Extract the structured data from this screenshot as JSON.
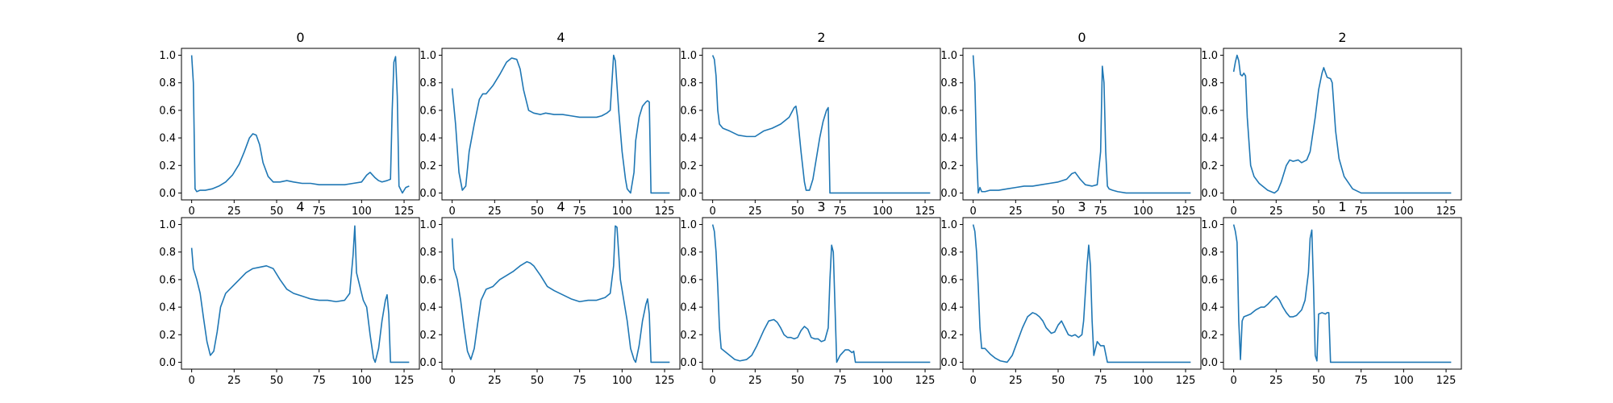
{
  "chart_data": [
    {
      "type": "line",
      "title": "0",
      "xlim": [
        -6,
        134
      ],
      "ylim": [
        -0.05,
        1.05
      ],
      "xticks": [
        0,
        25,
        50,
        75,
        100,
        125
      ],
      "yticks": [
        0.0,
        0.2,
        0.4,
        0.6,
        0.8,
        1.0
      ],
      "series": [
        {
          "color": "#1f77b4",
          "x": [
            0,
            1,
            2,
            3,
            5,
            8,
            12,
            16,
            20,
            24,
            28,
            31,
            34,
            36,
            38,
            40,
            42,
            45,
            48,
            52,
            56,
            60,
            65,
            70,
            75,
            80,
            85,
            90,
            95,
            100,
            103,
            105,
            108,
            110,
            112,
            115,
            117,
            118,
            119,
            120,
            121,
            122,
            124,
            126,
            128
          ],
          "y": [
            1.0,
            0.8,
            0.03,
            0.01,
            0.02,
            0.02,
            0.03,
            0.05,
            0.08,
            0.13,
            0.21,
            0.3,
            0.4,
            0.43,
            0.42,
            0.35,
            0.22,
            0.12,
            0.08,
            0.08,
            0.09,
            0.08,
            0.07,
            0.07,
            0.06,
            0.06,
            0.06,
            0.06,
            0.07,
            0.08,
            0.13,
            0.15,
            0.11,
            0.09,
            0.08,
            0.09,
            0.1,
            0.6,
            0.95,
            0.99,
            0.7,
            0.05,
            0.0,
            0.04,
            0.05
          ]
        }
      ]
    },
    {
      "type": "line",
      "title": "4",
      "xlim": [
        -6,
        134
      ],
      "ylim": [
        -0.05,
        1.05
      ],
      "xticks": [
        0,
        25,
        50,
        75,
        100,
        125
      ],
      "yticks": [
        0.0,
        0.2,
        0.4,
        0.6,
        0.8,
        1.0
      ],
      "series": [
        {
          "color": "#1f77b4",
          "x": [
            0,
            2,
            4,
            6,
            8,
            10,
            13,
            16,
            18,
            20,
            24,
            28,
            32,
            35,
            38,
            40,
            42,
            45,
            48,
            52,
            55,
            60,
            65,
            70,
            75,
            80,
            85,
            88,
            91,
            93,
            94,
            95,
            96,
            98,
            100,
            102,
            103,
            105,
            107,
            108,
            110,
            112,
            114,
            115,
            116,
            117,
            120,
            128
          ],
          "y": [
            0.76,
            0.5,
            0.15,
            0.02,
            0.05,
            0.3,
            0.5,
            0.68,
            0.72,
            0.72,
            0.78,
            0.86,
            0.95,
            0.98,
            0.97,
            0.9,
            0.75,
            0.6,
            0.58,
            0.57,
            0.58,
            0.57,
            0.57,
            0.56,
            0.55,
            0.55,
            0.55,
            0.56,
            0.58,
            0.6,
            0.8,
            1.0,
            0.96,
            0.6,
            0.3,
            0.1,
            0.03,
            0.0,
            0.15,
            0.38,
            0.55,
            0.63,
            0.66,
            0.67,
            0.66,
            0.0,
            0.0,
            0.0
          ]
        }
      ]
    },
    {
      "type": "line",
      "title": "2",
      "xlim": [
        -6,
        134
      ],
      "ylim": [
        -0.05,
        1.05
      ],
      "xticks": [
        0,
        25,
        50,
        75,
        100,
        125
      ],
      "yticks": [
        0.0,
        0.2,
        0.4,
        0.6,
        0.8,
        1.0
      ],
      "series": [
        {
          "color": "#1f77b4",
          "x": [
            0,
            1,
            2,
            3,
            4,
            6,
            10,
            15,
            20,
            25,
            30,
            35,
            40,
            45,
            48,
            49,
            50,
            52,
            54,
            55,
            57,
            59,
            61,
            63,
            65,
            67,
            68,
            69,
            70,
            75,
            80,
            90,
            100,
            110,
            120,
            128
          ],
          "y": [
            1.0,
            0.97,
            0.85,
            0.6,
            0.5,
            0.47,
            0.45,
            0.42,
            0.41,
            0.41,
            0.45,
            0.47,
            0.5,
            0.55,
            0.62,
            0.63,
            0.55,
            0.3,
            0.08,
            0.02,
            0.02,
            0.1,
            0.25,
            0.4,
            0.52,
            0.6,
            0.62,
            0.0,
            0.0,
            0.0,
            0.0,
            0.0,
            0.0,
            0.0,
            0.0,
            0.0
          ]
        }
      ]
    },
    {
      "type": "line",
      "title": "0",
      "xlim": [
        -6,
        134
      ],
      "ylim": [
        -0.05,
        1.05
      ],
      "xticks": [
        0,
        25,
        50,
        75,
        100,
        125
      ],
      "yticks": [
        0.0,
        0.2,
        0.4,
        0.6,
        0.8,
        1.0
      ],
      "series": [
        {
          "color": "#1f77b4",
          "x": [
            0,
            1,
            2,
            3,
            4,
            5,
            7,
            10,
            15,
            20,
            25,
            30,
            35,
            40,
            45,
            50,
            55,
            58,
            60,
            63,
            66,
            70,
            73,
            75,
            76,
            77,
            78,
            79,
            80,
            82,
            85,
            90,
            100,
            110,
            120,
            128
          ],
          "y": [
            1.0,
            0.8,
            0.3,
            0.0,
            0.04,
            0.01,
            0.01,
            0.02,
            0.02,
            0.03,
            0.04,
            0.05,
            0.05,
            0.06,
            0.07,
            0.08,
            0.1,
            0.14,
            0.15,
            0.1,
            0.06,
            0.05,
            0.06,
            0.3,
            0.92,
            0.8,
            0.3,
            0.05,
            0.03,
            0.02,
            0.01,
            0.0,
            0.0,
            0.0,
            0.0,
            0.0
          ]
        }
      ]
    },
    {
      "type": "line",
      "title": "2",
      "xlim": [
        -6,
        134
      ],
      "ylim": [
        -0.05,
        1.05
      ],
      "xticks": [
        0,
        25,
        50,
        75,
        100,
        125
      ],
      "yticks": [
        0.0,
        0.2,
        0.4,
        0.6,
        0.8,
        1.0
      ],
      "series": [
        {
          "color": "#1f77b4",
          "x": [
            0,
            1,
            2,
            3,
            4,
            5,
            6,
            7,
            8,
            10,
            12,
            15,
            20,
            24,
            26,
            28,
            31,
            33,
            35,
            38,
            40,
            43,
            45,
            48,
            50,
            52,
            53,
            55,
            57,
            58,
            60,
            62,
            65,
            70,
            75,
            80,
            90,
            100,
            110,
            120,
            128
          ],
          "y": [
            0.88,
            0.95,
            1.0,
            0.96,
            0.86,
            0.85,
            0.87,
            0.85,
            0.55,
            0.2,
            0.12,
            0.07,
            0.02,
            0.0,
            0.02,
            0.08,
            0.2,
            0.24,
            0.23,
            0.24,
            0.22,
            0.24,
            0.3,
            0.55,
            0.75,
            0.87,
            0.91,
            0.84,
            0.83,
            0.8,
            0.45,
            0.25,
            0.12,
            0.03,
            0.0,
            0.0,
            0.0,
            0.0,
            0.0,
            0.0,
            0.0
          ]
        }
      ]
    },
    {
      "type": "line",
      "title": "4",
      "xlim": [
        -6,
        134
      ],
      "ylim": [
        -0.05,
        1.05
      ],
      "xticks": [
        0,
        25,
        50,
        75,
        100,
        125
      ],
      "yticks": [
        0.0,
        0.2,
        0.4,
        0.6,
        0.8,
        1.0
      ],
      "series": [
        {
          "color": "#1f77b4",
          "x": [
            0,
            1,
            3,
            5,
            7,
            9,
            11,
            13,
            15,
            17,
            20,
            24,
            28,
            32,
            36,
            40,
            44,
            48,
            52,
            56,
            60,
            65,
            70,
            75,
            80,
            85,
            90,
            93,
            95,
            96,
            97,
            99,
            101,
            103,
            105,
            107,
            108,
            110,
            112,
            114,
            115,
            116,
            117,
            120,
            128
          ],
          "y": [
            0.83,
            0.68,
            0.6,
            0.5,
            0.32,
            0.15,
            0.05,
            0.08,
            0.22,
            0.4,
            0.5,
            0.55,
            0.6,
            0.65,
            0.68,
            0.69,
            0.7,
            0.68,
            0.6,
            0.53,
            0.5,
            0.48,
            0.46,
            0.45,
            0.45,
            0.44,
            0.45,
            0.5,
            0.78,
            0.99,
            0.65,
            0.55,
            0.45,
            0.4,
            0.2,
            0.03,
            0.0,
            0.1,
            0.3,
            0.45,
            0.49,
            0.35,
            0.0,
            0.0,
            0.0
          ]
        }
      ]
    },
    {
      "type": "line",
      "title": "4",
      "xlim": [
        -6,
        134
      ],
      "ylim": [
        -0.05,
        1.05
      ],
      "xticks": [
        0,
        25,
        50,
        75,
        100,
        125
      ],
      "yticks": [
        0.0,
        0.2,
        0.4,
        0.6,
        0.8,
        1.0
      ],
      "series": [
        {
          "color": "#1f77b4",
          "x": [
            0,
            1,
            3,
            5,
            7,
            9,
            11,
            13,
            15,
            17,
            20,
            24,
            28,
            32,
            36,
            40,
            44,
            46,
            48,
            52,
            56,
            60,
            65,
            70,
            75,
            80,
            85,
            90,
            93,
            95,
            96,
            97,
            99,
            101,
            103,
            105,
            107,
            108,
            110,
            112,
            114,
            115,
            116,
            117,
            120,
            128
          ],
          "y": [
            0.9,
            0.68,
            0.6,
            0.45,
            0.25,
            0.08,
            0.02,
            0.1,
            0.28,
            0.45,
            0.53,
            0.55,
            0.6,
            0.63,
            0.66,
            0.7,
            0.73,
            0.72,
            0.7,
            0.63,
            0.55,
            0.52,
            0.49,
            0.46,
            0.44,
            0.45,
            0.45,
            0.47,
            0.5,
            0.7,
            0.99,
            0.98,
            0.6,
            0.45,
            0.3,
            0.1,
            0.02,
            0.0,
            0.12,
            0.3,
            0.42,
            0.46,
            0.35,
            0.0,
            0.0,
            0.0
          ]
        }
      ]
    },
    {
      "type": "line",
      "title": "3",
      "xlim": [
        -6,
        134
      ],
      "ylim": [
        -0.05,
        1.05
      ],
      "xticks": [
        0,
        25,
        50,
        75,
        100,
        125
      ],
      "yticks": [
        0.0,
        0.2,
        0.4,
        0.6,
        0.8,
        1.0
      ],
      "series": [
        {
          "color": "#1f77b4",
          "x": [
            0,
            1,
            2,
            3,
            4,
            5,
            7,
            10,
            13,
            16,
            20,
            23,
            26,
            30,
            33,
            36,
            38,
            40,
            42,
            44,
            46,
            48,
            50,
            52,
            54,
            56,
            58,
            60,
            62,
            64,
            66,
            68,
            69,
            70,
            71,
            72,
            73,
            75,
            78,
            80,
            82,
            83,
            84,
            85,
            90,
            100,
            110,
            120,
            128
          ],
          "y": [
            1.0,
            0.95,
            0.8,
            0.55,
            0.25,
            0.1,
            0.08,
            0.05,
            0.02,
            0.01,
            0.02,
            0.05,
            0.12,
            0.23,
            0.3,
            0.31,
            0.29,
            0.25,
            0.2,
            0.18,
            0.18,
            0.17,
            0.18,
            0.23,
            0.26,
            0.24,
            0.18,
            0.17,
            0.17,
            0.15,
            0.16,
            0.25,
            0.6,
            0.85,
            0.8,
            0.4,
            0.0,
            0.05,
            0.09,
            0.09,
            0.07,
            0.08,
            0.0,
            0.0,
            0.0,
            0.0,
            0.0,
            0.0,
            0.0
          ]
        }
      ]
    },
    {
      "type": "line",
      "title": "3",
      "xlim": [
        -6,
        134
      ],
      "ylim": [
        -0.05,
        1.05
      ],
      "xticks": [
        0,
        25,
        50,
        75,
        100,
        125
      ],
      "yticks": [
        0.0,
        0.2,
        0.4,
        0.6,
        0.8,
        1.0
      ],
      "series": [
        {
          "color": "#1f77b4",
          "x": [
            0,
            1,
            2,
            3,
            4,
            5,
            7,
            10,
            13,
            16,
            20,
            23,
            26,
            29,
            32,
            35,
            37,
            39,
            41,
            43,
            46,
            48,
            50,
            52,
            54,
            56,
            58,
            60,
            62,
            64,
            65,
            66,
            67,
            68,
            69,
            70,
            71,
            72,
            73,
            75,
            77,
            79,
            80,
            85,
            90,
            100,
            110,
            120,
            128
          ],
          "y": [
            1.0,
            0.95,
            0.8,
            0.55,
            0.25,
            0.1,
            0.1,
            0.06,
            0.03,
            0.01,
            0.0,
            0.05,
            0.15,
            0.25,
            0.33,
            0.36,
            0.35,
            0.33,
            0.3,
            0.25,
            0.21,
            0.22,
            0.27,
            0.3,
            0.25,
            0.2,
            0.19,
            0.2,
            0.18,
            0.2,
            0.3,
            0.5,
            0.7,
            0.85,
            0.7,
            0.3,
            0.05,
            0.1,
            0.15,
            0.12,
            0.12,
            0.0,
            0.0,
            0.0,
            0.0,
            0.0,
            0.0,
            0.0,
            0.0
          ]
        }
      ]
    },
    {
      "type": "line",
      "title": "1",
      "xlim": [
        -6,
        134
      ],
      "ylim": [
        -0.05,
        1.05
      ],
      "xticks": [
        0,
        25,
        50,
        75,
        100,
        125
      ],
      "yticks": [
        0.0,
        0.2,
        0.4,
        0.6,
        0.8,
        1.0
      ],
      "series": [
        {
          "color": "#1f77b4",
          "x": [
            0,
            1,
            2,
            3,
            4,
            5,
            6,
            8,
            10,
            13,
            16,
            18,
            20,
            23,
            25,
            27,
            29,
            31,
            33,
            35,
            37,
            40,
            42,
            44,
            45,
            46,
            47,
            48,
            49,
            50,
            52,
            54,
            55,
            56,
            57,
            60,
            70,
            80,
            90,
            100,
            110,
            120,
            128
          ],
          "y": [
            1.0,
            0.95,
            0.87,
            0.3,
            0.02,
            0.3,
            0.33,
            0.34,
            0.35,
            0.38,
            0.4,
            0.4,
            0.42,
            0.46,
            0.48,
            0.45,
            0.4,
            0.36,
            0.33,
            0.33,
            0.34,
            0.38,
            0.45,
            0.65,
            0.9,
            0.96,
            0.55,
            0.05,
            0.01,
            0.35,
            0.36,
            0.35,
            0.36,
            0.36,
            0.0,
            0.0,
            0.0,
            0.0,
            0.0,
            0.0,
            0.0,
            0.0,
            0.0
          ]
        }
      ]
    }
  ]
}
